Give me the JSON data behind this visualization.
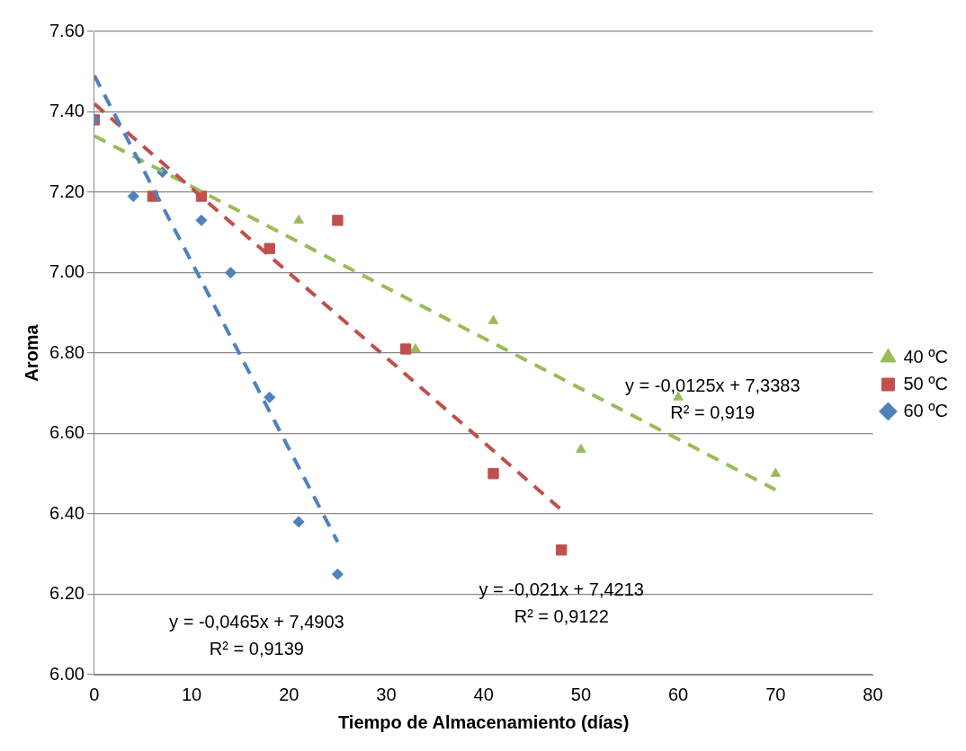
{
  "chart_data": {
    "type": "scatter",
    "xlabel": "Tiempo de Almacenamiento (días)",
    "ylabel": "Aroma",
    "xlim": [
      0,
      80
    ],
    "xticks": [
      0,
      10,
      20,
      30,
      40,
      50,
      60,
      70,
      80
    ],
    "ylim": [
      6.0,
      7.6
    ],
    "yticks": [
      {
        "value": 6.0,
        "label": "6.00"
      },
      {
        "value": 6.2,
        "label": "6.20"
      },
      {
        "value": 6.4,
        "label": "6.40"
      },
      {
        "value": 6.6,
        "label": "6.60"
      },
      {
        "value": 6.8,
        "label": "6.80"
      },
      {
        "value": 7.0,
        "label": "7.00"
      },
      {
        "value": 7.2,
        "label": "7.20"
      },
      {
        "value": 7.4,
        "label": "7.40"
      },
      {
        "value": 7.6,
        "label": "7.60"
      }
    ],
    "grid": "y",
    "legend": "right",
    "series": [
      {
        "name": "40 ºC",
        "marker": "triangle",
        "color": "#9bbb59",
        "x": [
          21,
          33,
          41,
          50,
          60,
          70
        ],
        "values": [
          7.13,
          6.81,
          6.88,
          6.56,
          6.69,
          6.5
        ]
      },
      {
        "name": "50 ºC",
        "marker": "square",
        "color": "#c0504d",
        "x": [
          0,
          6,
          11,
          18,
          25,
          32,
          41,
          48
        ],
        "values": [
          7.38,
          7.19,
          7.19,
          7.06,
          7.13,
          6.81,
          6.5,
          6.31
        ]
      },
      {
        "name": "60 ºC",
        "marker": "diamond",
        "color": "#4f81bd",
        "x": [
          0,
          4,
          7,
          11,
          14,
          18,
          21,
          25
        ],
        "values": [
          7.38,
          7.19,
          7.25,
          7.13,
          7.0,
          6.69,
          6.38,
          6.25
        ]
      },
      {
        "type": "line",
        "line_style": "dashed",
        "marker": "none",
        "color": "#9bbb59",
        "x": [
          0,
          70
        ],
        "values": [
          7.34,
          6.46
        ]
      },
      {
        "type": "line",
        "line_style": "dashed",
        "marker": "none",
        "color": "#c0504d",
        "x": [
          0,
          48
        ],
        "values": [
          7.42,
          6.41
        ]
      },
      {
        "type": "line",
        "line_style": "dashed",
        "marker": "none",
        "color": "#4f81bd",
        "x": [
          0,
          25
        ],
        "values": [
          7.49,
          6.33
        ]
      }
    ],
    "annotations": [
      "y = -0,0125x + 7,3383\nR² = 0,919",
      "y = -0,021x + 7,4213\nR² = 0,9122",
      "y = -0,0465x + 7,4903\nR² = 0,9139"
    ]
  }
}
